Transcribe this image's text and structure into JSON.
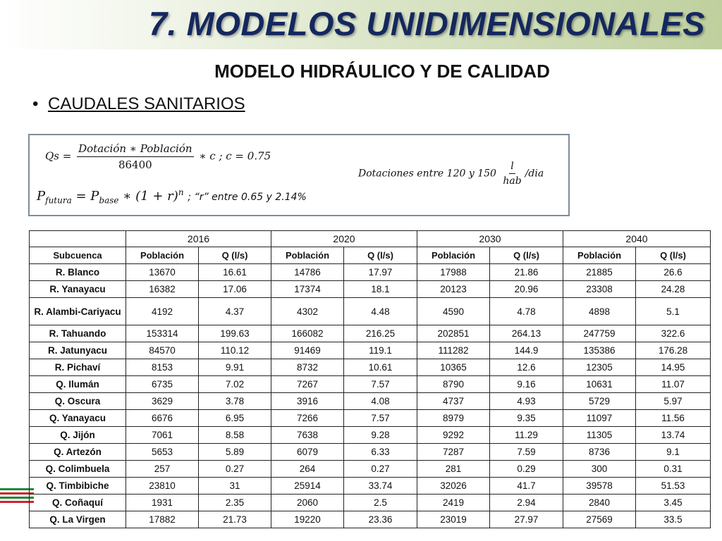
{
  "slide": {
    "title": "7. MODELOS UNIDIMENSIONALES",
    "subtitle": "MODELO HIDRÁULICO Y DE CALIDAD",
    "bullet_marker": "•",
    "bullet": "CAUDALES SANITARIOS"
  },
  "formulas": {
    "qs_lhs": "Qs =",
    "qs_num": "Dotación ∗ Población",
    "qs_den": "86400",
    "qs_rest": "∗ c ;    c = 0.75",
    "pf_text": "P",
    "pf_sub": "futura",
    "pf_eq": " = P",
    "pf_sub2": "base",
    "pf_rest": " ∗ (1 + r)",
    "pf_exp": "n",
    "pf_note": "; “r” entre 0.65 y 2.14%",
    "dot_text": "Dotaciones entre 120 y 150",
    "dot_num": "l",
    "dot_den": "hab",
    "dot_unit": "/dia"
  },
  "table": {
    "years": [
      "2016",
      "2020",
      "2030",
      "2040"
    ],
    "headers": [
      "Subcuenca",
      "Población",
      "Q (l/s)",
      "Población",
      "Q (l/s)",
      "Población",
      "Q (l/s)",
      "Población",
      "Q (l/s)"
    ],
    "rows": [
      [
        "R. Blanco",
        "13670",
        "16.61",
        "14786",
        "17.97",
        "17988",
        "21.86",
        "21885",
        "26.6"
      ],
      [
        "R. Yanayacu",
        "16382",
        "17.06",
        "17374",
        "18.1",
        "20123",
        "20.96",
        "23308",
        "24.28"
      ],
      [
        "R. Alambi-Cariyacu",
        "4192",
        "4.37",
        "4302",
        "4.48",
        "4590",
        "4.78",
        "4898",
        "5.1"
      ],
      [
        "R. Tahuando",
        "153314",
        "199.63",
        "166082",
        "216.25",
        "202851",
        "264.13",
        "247759",
        "322.6"
      ],
      [
        "R. Jatunyacu",
        "84570",
        "110.12",
        "91469",
        "119.1",
        "111282",
        "144.9",
        "135386",
        "176.28"
      ],
      [
        "R. Pichaví",
        "8153",
        "9.91",
        "8732",
        "10.61",
        "10365",
        "12.6",
        "12305",
        "14.95"
      ],
      [
        "Q. Ilumán",
        "6735",
        "7.02",
        "7267",
        "7.57",
        "8790",
        "9.16",
        "10631",
        "11.07"
      ],
      [
        "Q. Oscura",
        "3629",
        "3.78",
        "3916",
        "4.08",
        "4737",
        "4.93",
        "5729",
        "5.97"
      ],
      [
        "Q. Yanayacu",
        "6676",
        "6.95",
        "7266",
        "7.57",
        "8979",
        "9.35",
        "11097",
        "11.56"
      ],
      [
        "Q. Jijón",
        "7061",
        "8.58",
        "7638",
        "9.28",
        "9292",
        "11.29",
        "11305",
        "13.74"
      ],
      [
        "Q. Artezón",
        "5653",
        "5.89",
        "6079",
        "6.33",
        "7287",
        "7.59",
        "8736",
        "9.1"
      ],
      [
        "Q. Colimbuela",
        "257",
        "0.27",
        "264",
        "0.27",
        "281",
        "0.29",
        "300",
        "0.31"
      ],
      [
        "Q. Timbibiche",
        "23810",
        "31",
        "25914",
        "33.74",
        "32026",
        "41.7",
        "39578",
        "51.53"
      ],
      [
        "Q. Coñaquí",
        "1931",
        "2.35",
        "2060",
        "2.5",
        "2419",
        "2.94",
        "2840",
        "3.45"
      ],
      [
        "Q. La Virgen",
        "17882",
        "21.73",
        "19220",
        "23.36",
        "23019",
        "27.97",
        "27569",
        "33.5"
      ]
    ]
  },
  "colors": {
    "title": "#14285f",
    "banner": "#bfd09e",
    "box_border": "#7f8c99",
    "flag_green": "#1e8a3c",
    "flag_red": "#d2232a"
  }
}
